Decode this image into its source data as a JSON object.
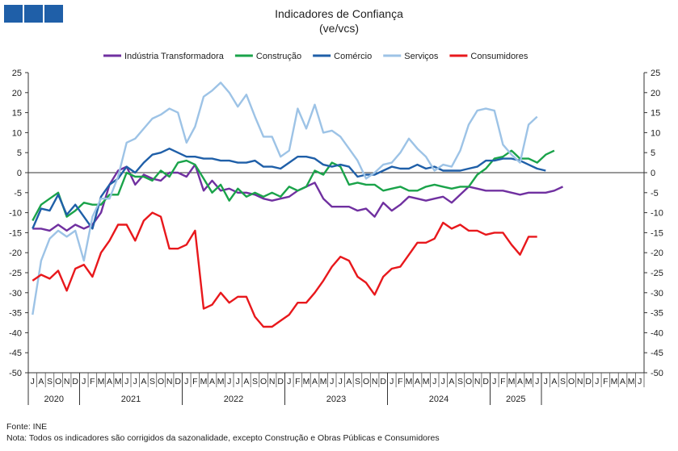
{
  "header": {
    "logo_color": "#1f5fa8",
    "title": "Indicadores de Confiança",
    "subtitle": "(ve/vcs)"
  },
  "footer": {
    "source": "Fonte: INE",
    "note": "Nota: Todos os indicadores são corrigidos da sazonalidade, excepto Construção e Obras Públicas e Consumidores"
  },
  "chart_data": {
    "type": "line",
    "legend_position": "top",
    "grid": false,
    "ylim": [
      -50,
      25
    ],
    "yticks": [
      25,
      20,
      15,
      10,
      5,
      0,
      -5,
      -10,
      -15,
      -20,
      -25,
      -30,
      -35,
      -40,
      -45,
      -50
    ],
    "month_letters": [
      "J",
      "A",
      "S",
      "O",
      "N",
      "D",
      "J",
      "F",
      "M",
      "A",
      "M",
      "J",
      "J",
      "A",
      "S",
      "O",
      "N",
      "D",
      "J",
      "F",
      "M",
      "A",
      "M",
      "J",
      "J",
      "A",
      "S",
      "O",
      "N",
      "D",
      "J",
      "F",
      "M",
      "A",
      "M",
      "J",
      "J",
      "A",
      "S",
      "O",
      "N",
      "D",
      "J",
      "F",
      "M",
      "A",
      "M",
      "J",
      "J",
      "A",
      "S",
      "O",
      "N",
      "D",
      "J",
      "F",
      "M",
      "A",
      "M",
      "J",
      "J",
      "A",
      "S",
      "O",
      "N",
      "D",
      "J",
      "F",
      "M",
      "A",
      "M",
      "J"
    ],
    "years": [
      {
        "label": "2020",
        "start": 0,
        "count": 6
      },
      {
        "label": "2021",
        "start": 6,
        "count": 12
      },
      {
        "label": "2022",
        "start": 18,
        "count": 12
      },
      {
        "label": "2023",
        "start": 30,
        "count": 12
      },
      {
        "label": "2024",
        "start": 42,
        "count": 12
      },
      {
        "label": "2025",
        "start": 54,
        "count": 6
      }
    ],
    "series": [
      {
        "name": "Indústria Transformadora",
        "color": "#7030a0",
        "values": [
          -14,
          -14,
          -14.5,
          -13,
          -14.5,
          -13,
          -14,
          -13,
          -10,
          -3,
          0.5,
          1.5,
          -3,
          -0.5,
          -1.5,
          -2,
          0,
          0,
          -1,
          2,
          -4.5,
          -2,
          -4.5,
          -4,
          -5,
          -5,
          -5.5,
          -6.5,
          -7,
          -6.5,
          -6,
          -4.5,
          -3.5,
          -2.5,
          -6.5,
          -8.5,
          -8.5,
          -8.5,
          -9.5,
          -9,
          -11,
          -7.5,
          -9.5,
          -8,
          -6,
          -6.5,
          -7,
          -6.5,
          -6,
          -7.5,
          -5.5,
          -3.5,
          -4,
          -4.5,
          -4.5,
          -4.5,
          -5,
          -5.5,
          -5,
          -5,
          -5,
          -4.5,
          -3.5
        ]
      },
      {
        "name": "Construção",
        "color": "#1aa34a",
        "values": [
          -12,
          -8,
          -6.5,
          -5,
          -11,
          -9.5,
          -7.5,
          -8,
          -8,
          -5.5,
          -5.5,
          0,
          -1,
          -1,
          -2,
          0.5,
          -1,
          2.5,
          3,
          2,
          -1.5,
          -5,
          -3,
          -7,
          -4,
          -6,
          -5,
          -6,
          -5,
          -6,
          -3.5,
          -4.5,
          -3.5,
          0.5,
          -0.5,
          2.5,
          1.5,
          -3,
          -2.5,
          -3,
          -3,
          -4.5,
          -4,
          -3.5,
          -4.5,
          -4.5,
          -3.5,
          -3,
          -3.5,
          -4,
          -3.5,
          -3.5,
          -0.5,
          1,
          3.5,
          4,
          5.5,
          3.5,
          3.5,
          2.5,
          4.5,
          5.5
        ]
      },
      {
        "name": "Comércio",
        "color": "#1f5fa8",
        "values": [
          -14,
          -9,
          -9.5,
          -5.5,
          -10.5,
          -8,
          -11,
          -14,
          -6,
          -3,
          -1.5,
          1.5,
          0,
          2.5,
          4.5,
          5,
          6,
          5,
          4,
          4,
          3.5,
          3.5,
          3,
          3,
          2.5,
          2.5,
          3,
          1.5,
          1.5,
          1,
          2.5,
          4,
          4,
          3.5,
          2,
          1.5,
          2,
          1.5,
          -1,
          -0.5,
          -0.5,
          0.5,
          1.5,
          1,
          1,
          2,
          1,
          1.5,
          0.5,
          0.5,
          0.5,
          1,
          1.5,
          3,
          3,
          3.5,
          3.5,
          3,
          2,
          1,
          0.5
        ]
      },
      {
        "name": "Serviços",
        "color": "#9dc3e6",
        "values": [
          -35.5,
          -22,
          -16.5,
          -14.5,
          -16,
          -14.5,
          -22,
          -11,
          -6.5,
          -6.5,
          -1,
          7.5,
          8.5,
          11,
          13.5,
          14.5,
          16,
          15,
          7.5,
          11.5,
          19,
          20.5,
          22.5,
          20,
          16.5,
          19.5,
          14,
          9,
          9,
          4,
          5.5,
          16,
          11,
          17,
          10,
          10.5,
          9,
          6,
          3,
          -1.5,
          0,
          2,
          2.5,
          5,
          8.5,
          6,
          4,
          0.5,
          2,
          1.5,
          5.5,
          12,
          15.5,
          16,
          15.5,
          7,
          4.5,
          2.5,
          12,
          14
        ]
      },
      {
        "name": "Consumidores",
        "color": "#e8181c",
        "values": [
          -27,
          -25.5,
          -26.5,
          -24.5,
          -29.5,
          -24,
          -23,
          -26,
          -20,
          -17,
          -13,
          -13,
          -17,
          -12,
          -10,
          -11,
          -19,
          -19,
          -18,
          -14.5,
          -34,
          -33,
          -30,
          -32.5,
          -31,
          -31,
          -36,
          -38.5,
          -38.5,
          -37,
          -35.5,
          -32.5,
          -32.5,
          -30,
          -27,
          -23.5,
          -21,
          -22,
          -26,
          -27.5,
          -30.5,
          -26,
          -24,
          -23.5,
          -20.5,
          -17.5,
          -17.5,
          -16.5,
          -12.5,
          -14,
          -13,
          -14.5,
          -14.5,
          -15.5,
          -15,
          -15,
          -18,
          -20.5,
          -16,
          -16
        ]
      }
    ]
  }
}
